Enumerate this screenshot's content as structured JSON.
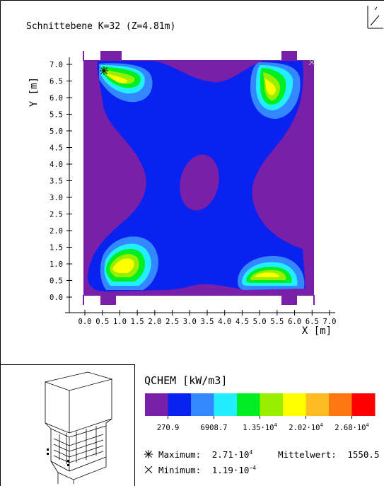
{
  "title": "Schnittebene K=32 (Z=4.81m)",
  "axis": {
    "y_label": "Y [m]",
    "x_label": "X [m]",
    "y_ticks": [
      "7.0",
      "6.5",
      "6.0",
      "5.5",
      "5.0",
      "4.5",
      "4.0",
      "3.5",
      "3.0",
      "2.5",
      "2.0",
      "1.5",
      "1.0",
      "0.5",
      "0.0"
    ],
    "x_ticks": [
      "0.0",
      "0.5",
      "1.0",
      "1.5",
      "2.0",
      "2.5",
      "3.0",
      "3.5",
      "4.0",
      "4.5",
      "5.0",
      "5.5",
      "6.0",
      "6.5",
      "7.0"
    ]
  },
  "legend": {
    "title": "QCHEM [kW/m3]",
    "colors": [
      "#7a1fa8",
      "#0a22f0",
      "#3388ff",
      "#22eeff",
      "#00ee22",
      "#99ee00",
      "#ffff00",
      "#ffbb22",
      "#ff7711",
      "#ff0000"
    ],
    "labels": [
      {
        "mant": "270.9",
        "exp": ""
      },
      {
        "mant": "6908.7",
        "exp": ""
      },
      {
        "mant": "1.35·10",
        "exp": "4"
      },
      {
        "mant": "2.02·10",
        "exp": "4"
      },
      {
        "mant": "2.68·10",
        "exp": "4"
      }
    ]
  },
  "stats": {
    "max_label": "Maximum:",
    "max_mant": "2.71·10",
    "max_exp": "4",
    "mean_label": "Mittelwert:",
    "mean_value": "1550.5",
    "min_label": "Minimum:",
    "min_mant": "1.19·10",
    "min_exp": "−4"
  },
  "icons": {
    "max_marker": "asterisk-marker-icon",
    "min_marker": "cross-marker-icon",
    "orientation": "orientation-glyph-icon",
    "boiler": "boiler-sketch-icon"
  }
}
